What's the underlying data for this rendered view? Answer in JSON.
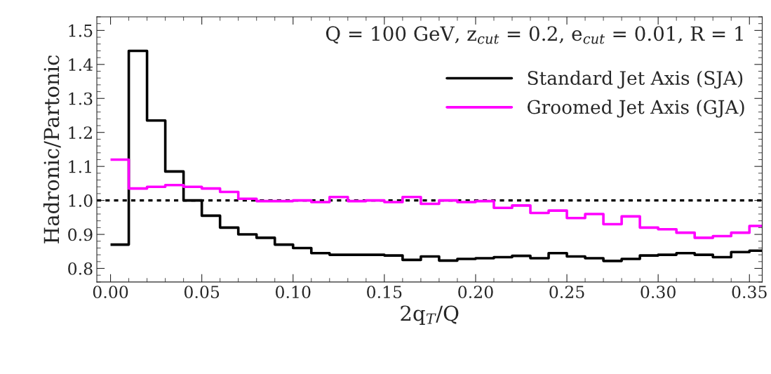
{
  "chart_data": {
    "type": "histogram",
    "xlabel": "2q$_{T}$/Q",
    "ylabel": "Hadronic/Partonic",
    "bins": [
      0.0,
      0.01,
      0.02,
      0.03,
      0.04,
      0.05,
      0.06,
      0.07,
      0.08,
      0.09,
      0.1,
      0.11,
      0.12,
      0.13,
      0.14,
      0.15,
      0.16,
      0.17,
      0.18,
      0.19,
      0.2,
      0.21,
      0.22,
      0.23,
      0.24,
      0.25,
      0.26,
      0.27,
      0.28,
      0.29,
      0.3,
      0.31,
      0.32,
      0.33,
      0.34,
      0.35,
      0.36
    ],
    "series": [
      {
        "name": "Standard Jet Axis (SJA)",
        "color": "#000000",
        "values": [
          0.87,
          1.44,
          1.235,
          1.085,
          1.0,
          0.955,
          0.92,
          0.9,
          0.89,
          0.87,
          0.86,
          0.845,
          0.84,
          0.84,
          0.84,
          0.838,
          0.825,
          0.835,
          0.823,
          0.828,
          0.83,
          0.833,
          0.837,
          0.83,
          0.845,
          0.835,
          0.83,
          0.822,
          0.828,
          0.838,
          0.84,
          0.845,
          0.84,
          0.833,
          0.848,
          0.852
        ]
      },
      {
        "name": "Groomed Jet Axis (GJA)",
        "color": "#ff00ff",
        "values": [
          1.12,
          1.035,
          1.04,
          1.045,
          1.04,
          1.035,
          1.025,
          1.005,
          0.998,
          0.998,
          1.0,
          0.995,
          1.01,
          0.998,
          1.0,
          0.995,
          1.01,
          0.99,
          1.0,
          0.995,
          0.998,
          0.978,
          0.985,
          0.963,
          0.97,
          0.948,
          0.96,
          0.93,
          0.953,
          0.92,
          0.915,
          0.905,
          0.89,
          0.895,
          0.905,
          0.925
        ]
      }
    ],
    "xlim": [
      -0.0075,
      0.357
    ],
    "ylim": [
      0.76,
      1.54
    ],
    "xticks": [
      {
        "value": 0.0,
        "label": "0.00"
      },
      {
        "value": 0.05,
        "label": "0.05"
      },
      {
        "value": 0.1,
        "label": "0.10"
      },
      {
        "value": 0.15,
        "label": "0.15"
      },
      {
        "value": 0.2,
        "label": "0.20"
      },
      {
        "value": 0.25,
        "label": "0.25"
      },
      {
        "value": 0.3,
        "label": "0.30"
      },
      {
        "value": 0.35,
        "label": "0.35"
      }
    ],
    "yticks": [
      0.8,
      0.9,
      {
        "value": 1.0,
        "label": "1.0"
      },
      1.1,
      1.2,
      1.3,
      1.4,
      1.5
    ],
    "ref_lines": [
      {
        "axis": "y",
        "value": 1.0,
        "color": "#000000",
        "line_style": "dotted"
      }
    ],
    "annotations": [
      "Q = 100 GeV, z$_{cut}$ = 0.2, e$_{cut}$ = 0.01, R = 1"
    ],
    "legend": "top right",
    "grid": false
  }
}
